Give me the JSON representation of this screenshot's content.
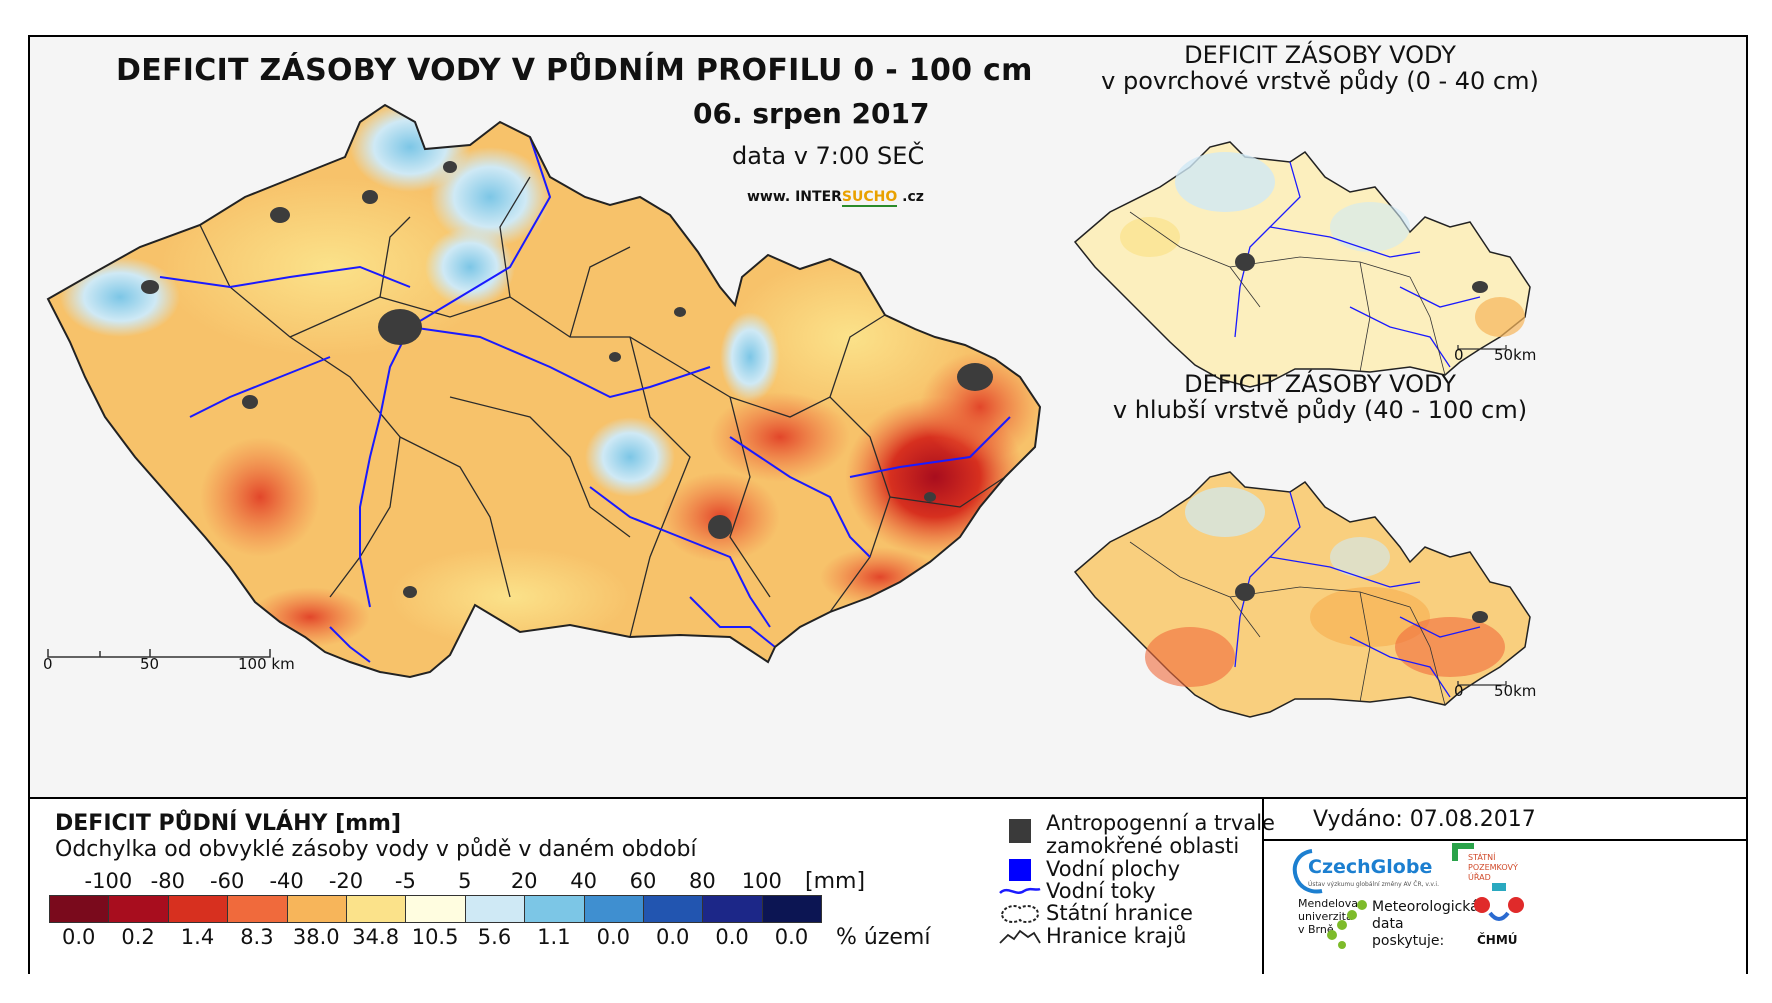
{
  "title": "DEFICIT ZÁSOBY VODY V PŮDNÍM PROFILU 0 - 100 cm",
  "date": "06. srpen 2017",
  "data_time": "data v 7:00 SEČ",
  "website": {
    "prefix": "www. INTER",
    "highlight": "SUCHO",
    "suffix": " .cz"
  },
  "main_scale": {
    "labels": [
      "0",
      "50",
      "100 km"
    ]
  },
  "inset_top": {
    "title_line1": "DEFICIT ZÁSOBY VODY",
    "title_line2": "v povrchové vrstvě půdy (0 - 40 cm)",
    "scale_labels": [
      "0",
      "50km"
    ]
  },
  "inset_bottom": {
    "title_line1": "DEFICIT ZÁSOBY VODY",
    "title_line2": "v hlubší vrstvě půdy (40 - 100 cm)",
    "scale_labels": [
      "0",
      "50km"
    ]
  },
  "legend": {
    "title": "DEFICIT PŮDNÍ VLÁHY [mm]",
    "subtitle": "Odchylka od obvyklé zásoby vody v půdě v daném období",
    "class_labels": [
      "-100",
      "-80",
      "-60",
      "-40",
      "-20",
      "-5",
      "5",
      "20",
      "40",
      "60",
      "80",
      "100"
    ],
    "unit": "[mm]",
    "colors": [
      "#7a0a1c",
      "#a80d1e",
      "#d7301f",
      "#f06a3c",
      "#f7b55a",
      "#fbe28a",
      "#fffde0",
      "#cfe9f5",
      "#7cc6e6",
      "#3f8fd0",
      "#2255b0",
      "#1c2788",
      "#0c1553"
    ],
    "percentages": [
      "0.0",
      "0.2",
      "1.4",
      "8.3",
      "38.0",
      "34.8",
      "10.5",
      "5.6",
      "1.1",
      "0.0",
      "0.0",
      "0.0",
      "0.0"
    ],
    "pct_unit": "% území"
  },
  "map_legend": {
    "items": [
      {
        "label_line1": "Antropogenní a trvale",
        "label_line2": "zamokřené oblasti",
        "color": "#3a3a3a"
      },
      {
        "label_line1": "Vodní plochy",
        "color": "#0000ff"
      },
      {
        "label_line1": "Vodní toky",
        "color": "#1a1aff"
      },
      {
        "label_line1": "Státní hranice",
        "color": "#000000"
      },
      {
        "label_line1": "Hranice krajů",
        "color": "#000000"
      }
    ]
  },
  "issued": "Vydáno: 07.08.2017",
  "logos": {
    "czechglobe": "CzechGlobe",
    "czechglobe_sub": "Ústav výzkumu globální změny AV ČR, v.v.i.",
    "spu": [
      "STÁTNÍ",
      "POZEMKOVÝ",
      "ÚŘAD"
    ],
    "mendel": [
      "Mendelova",
      "univerzita",
      "v Brně"
    ],
    "meteo": [
      "Meteorologická",
      "data",
      "poskytuje:"
    ],
    "chmu": "ČHMÚ"
  }
}
